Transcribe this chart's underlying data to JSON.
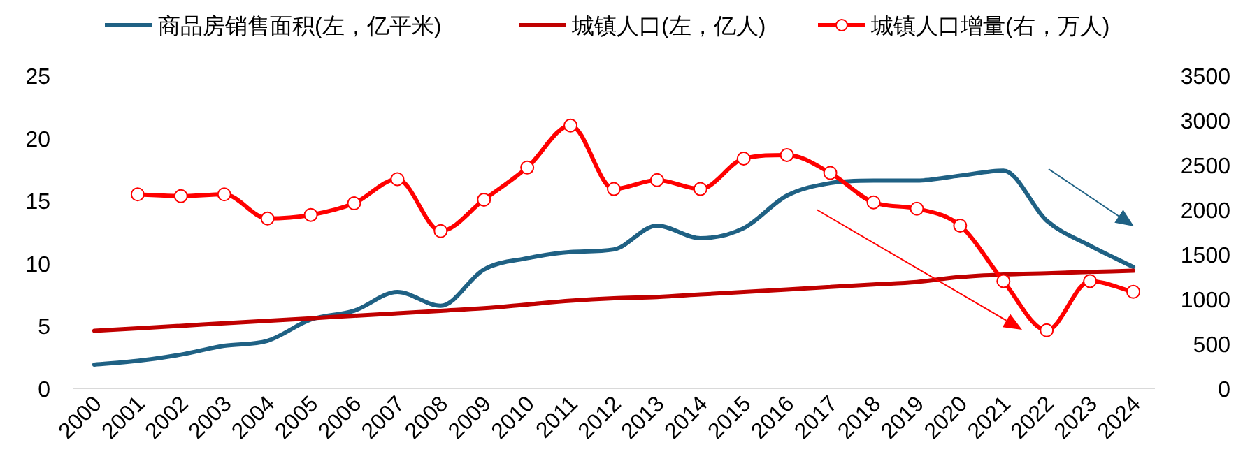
{
  "chart_data": {
    "type": "line",
    "categories": [
      "2000",
      "2001",
      "2002",
      "2003",
      "2004",
      "2005",
      "2006",
      "2007",
      "2008",
      "2009",
      "2010",
      "2011",
      "2012",
      "2013",
      "2014",
      "2015",
      "2016",
      "2017",
      "2018",
      "2019",
      "2020",
      "2021",
      "2022",
      "2023",
      "2024"
    ],
    "series": [
      {
        "name": "商品房销售面积(左，亿平米)",
        "color": "#1f6184",
        "marker": "none",
        "values": [
          1.9,
          2.2,
          2.7,
          3.4,
          3.8,
          5.5,
          6.2,
          7.7,
          6.6,
          9.5,
          10.4,
          10.9,
          11.1,
          13.0,
          12.0,
          12.8,
          15.4,
          16.4,
          16.6,
          16.6,
          17.0,
          17.4,
          13.4,
          11.4,
          9.7
        ]
      },
      {
        "name": "城镇人口(左，亿人)",
        "color": "#c00000",
        "marker": "none",
        "values": [
          4.6,
          4.8,
          5.0,
          5.2,
          5.4,
          5.6,
          5.8,
          6.0,
          6.2,
          6.4,
          6.7,
          7.0,
          7.2,
          7.3,
          7.5,
          7.7,
          7.9,
          8.1,
          8.3,
          8.5,
          8.9,
          9.1,
          9.2,
          9.3,
          9.4
        ]
      },
      {
        "name": "城镇人口增量(右，万人)",
        "color": "#ff0000",
        "marker": "circle",
        "axis": "y2",
        "values": [
          null,
          2170,
          2150,
          2170,
          1900,
          1940,
          2070,
          2340,
          1760,
          2110,
          2470,
          2940,
          2230,
          2330,
          2230,
          2570,
          2610,
          2410,
          2080,
          2010,
          1820,
          1200,
          650,
          1200,
          1080
        ]
      }
    ],
    "ylim": [
      0,
      25
    ],
    "yticks": [
      0,
      5,
      10,
      15,
      20,
      25
    ],
    "y2lim": [
      0,
      3500
    ],
    "y2ticks": [
      0,
      500,
      1000,
      1500,
      2000,
      2500,
      3000,
      3500
    ],
    "legend": "top",
    "grid": false
  }
}
